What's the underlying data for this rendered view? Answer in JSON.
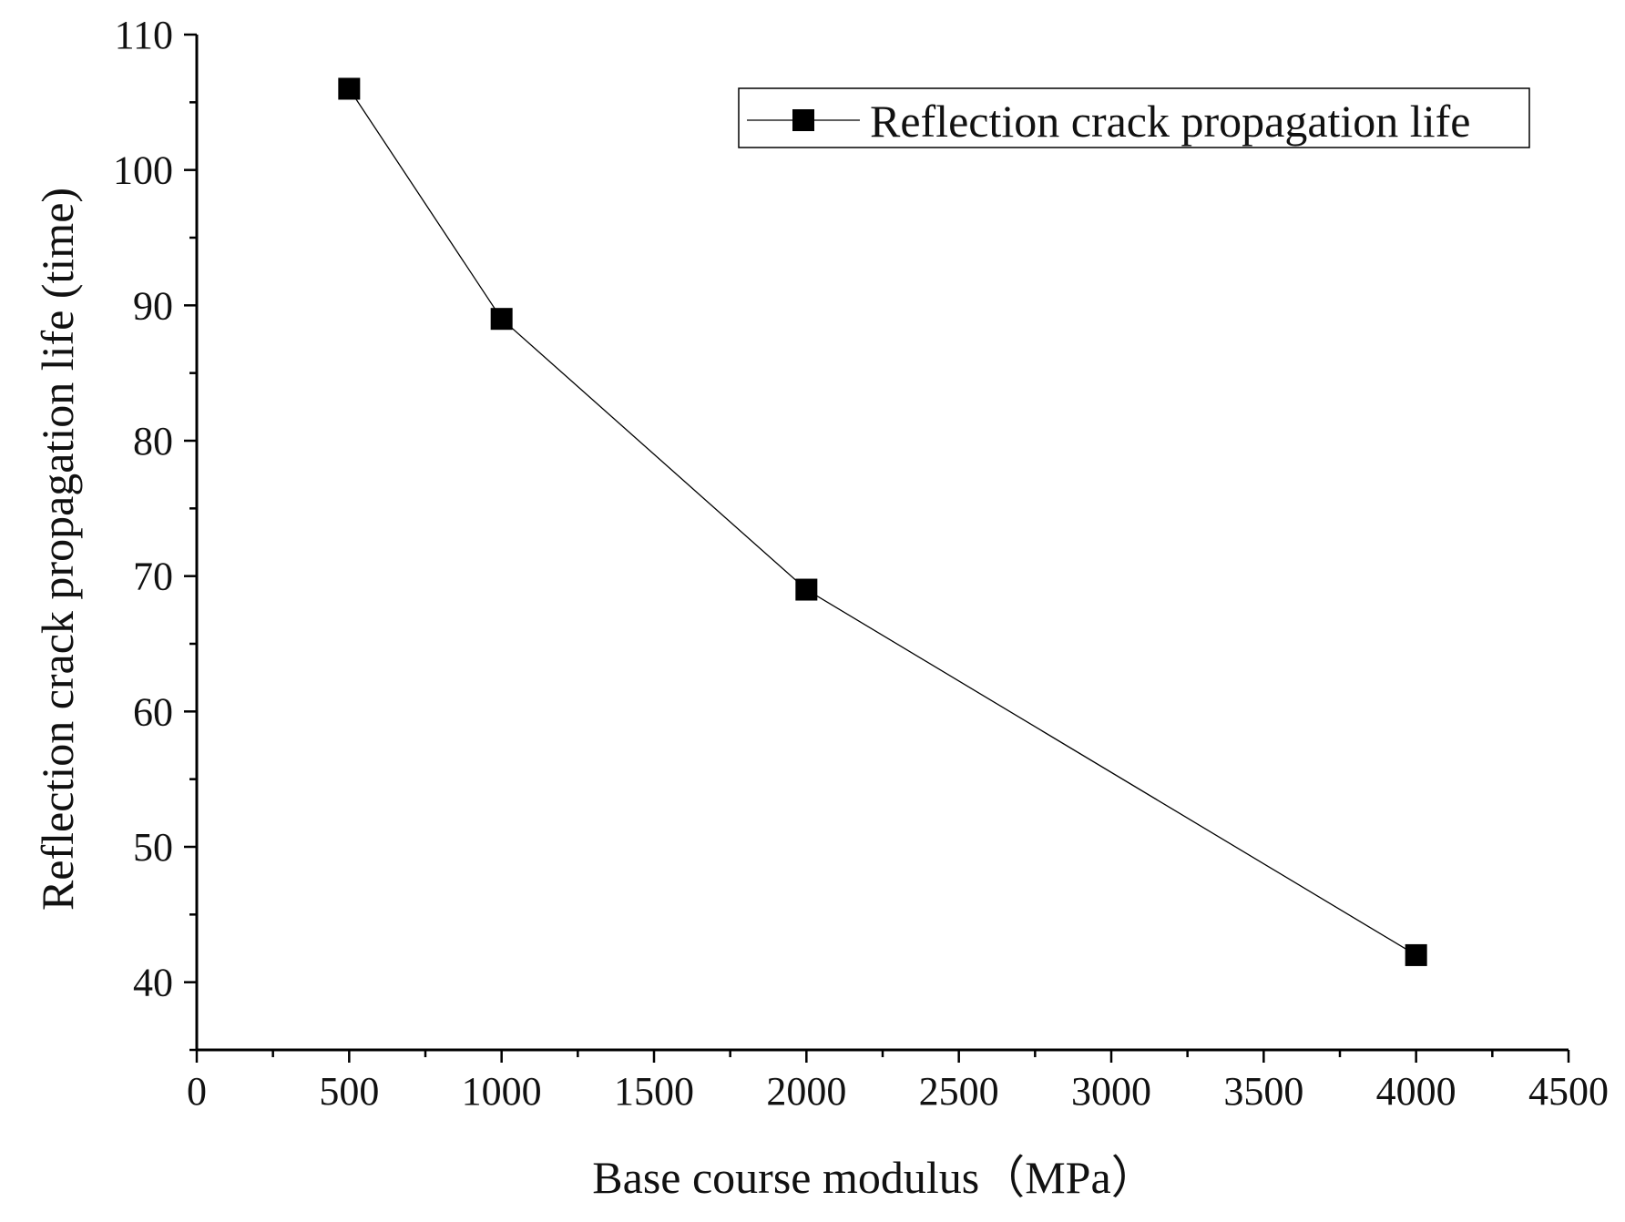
{
  "chart_data": {
    "type": "line",
    "title": "",
    "xlabel": "Base course modulus（MPa）",
    "ylabel": "Reflection crack propagation life (time)",
    "xlim": [
      0,
      4500
    ],
    "ylim": [
      35,
      110
    ],
    "x_ticks": [
      0,
      500,
      1000,
      1500,
      2000,
      2500,
      3000,
      3500,
      4000,
      4500
    ],
    "x_tick_labels": [
      "0",
      "500",
      "1000",
      "1500",
      "2000",
      "2500",
      "3000",
      "3500",
      "4000",
      "4500"
    ],
    "y_ticks": [
      40,
      50,
      60,
      70,
      80,
      90,
      100,
      110
    ],
    "y_tick_labels": [
      "40",
      "50",
      "60",
      "70",
      "80",
      "90",
      "100",
      "110"
    ],
    "x_minor_step": 250,
    "y_minor_step": 5,
    "grid": false,
    "legend_position": "top-right",
    "series": [
      {
        "name": "Reflection crack propagation life",
        "marker": "square",
        "color": "#000000",
        "x": [
          500,
          1000,
          2000,
          4000
        ],
        "values": [
          106,
          89,
          69,
          42
        ]
      }
    ]
  }
}
